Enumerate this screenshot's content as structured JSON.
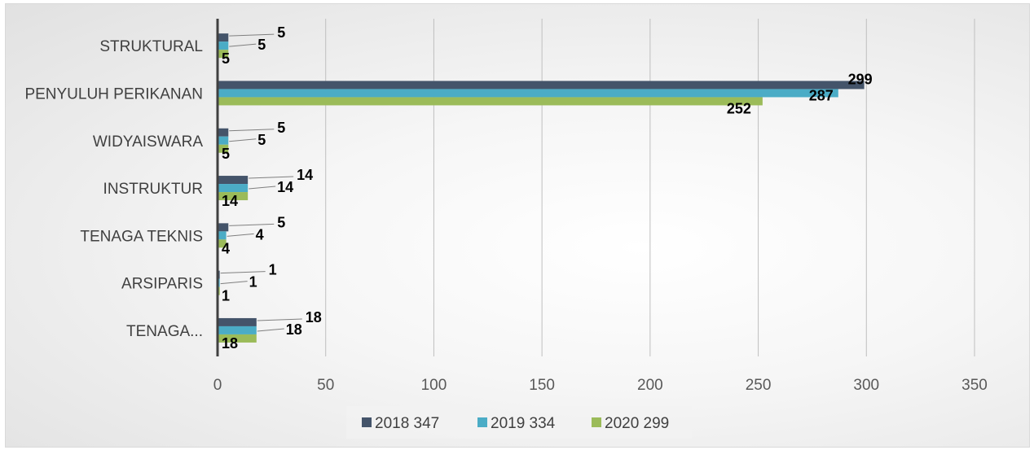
{
  "chart_data": {
    "type": "bar",
    "orientation": "horizontal",
    "title": "",
    "xlabel": "",
    "ylabel": "",
    "categories": [
      "STRUKTURAL",
      "PENYULUH PERIKANAN",
      "WIDYAISWARA",
      "INSTRUKTUR",
      "TENAGA TEKNIS",
      "ARSIPARIS",
      "TENAGA..."
    ],
    "series": [
      {
        "name": "2018 347",
        "color": "#44546a",
        "values": [
          5,
          299,
          5,
          14,
          5,
          1,
          18
        ]
      },
      {
        "name": "2019 334",
        "color": "#4bacc6",
        "values": [
          5,
          287,
          5,
          14,
          4,
          1,
          18
        ]
      },
      {
        "name": "2020 299",
        "color": "#9bbb59",
        "values": [
          5,
          252,
          5,
          14,
          4,
          1,
          18
        ]
      }
    ],
    "xlim": [
      0,
      350
    ],
    "xticks": [
      "0",
      "50",
      "100",
      "150",
      "200",
      "250",
      "300",
      "350"
    ],
    "grid": "vertical",
    "legend": "bottom-center",
    "data_labels": true
  }
}
